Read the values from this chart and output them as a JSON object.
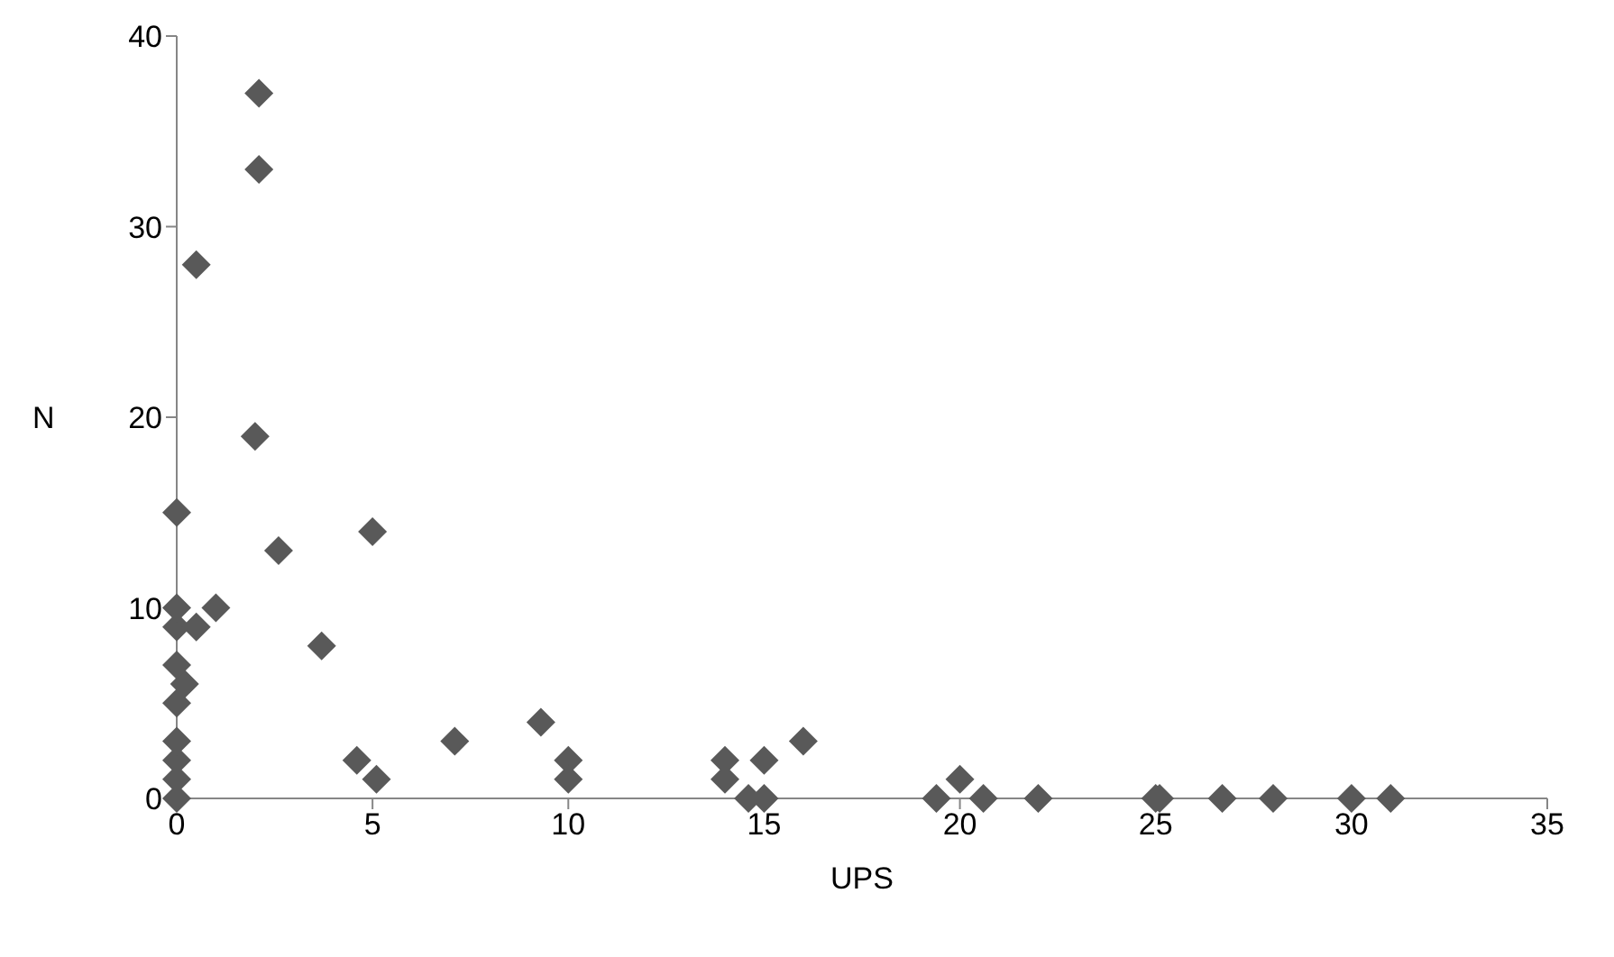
{
  "chart_data": {
    "type": "scatter",
    "xlabel": "UPS",
    "ylabel": "N",
    "xlim": [
      0,
      35
    ],
    "xticks": [
      0,
      5,
      10,
      15,
      20,
      25,
      30,
      35
    ],
    "ylim": [
      0,
      40
    ],
    "yticks": [
      0,
      10,
      20,
      30,
      40
    ],
    "grid": false,
    "legend": false,
    "marker": "diamond",
    "series": [
      {
        "color": "#595959",
        "x": [
          0,
          0,
          0,
          0,
          0,
          0.2,
          0,
          0,
          0,
          0,
          0.5,
          1,
          0.5,
          2,
          2.1,
          2.1,
          2.6,
          3.7,
          5,
          4.6,
          5.1,
          7.1,
          9.3,
          10,
          10,
          14,
          14,
          14.6,
          15,
          15,
          16,
          19.4,
          20,
          20.6,
          22,
          25,
          25.1,
          26.7,
          28,
          30,
          31
        ],
        "values": [
          0,
          1,
          2,
          3,
          5,
          6,
          7,
          9,
          10,
          15,
          9,
          10,
          28,
          19,
          33,
          37,
          13,
          8,
          14,
          2,
          1,
          3,
          4,
          2,
          1,
          2,
          1,
          0,
          0,
          2,
          3,
          0,
          1,
          0,
          0,
          0,
          0,
          0,
          0,
          0,
          0
        ]
      }
    ]
  }
}
